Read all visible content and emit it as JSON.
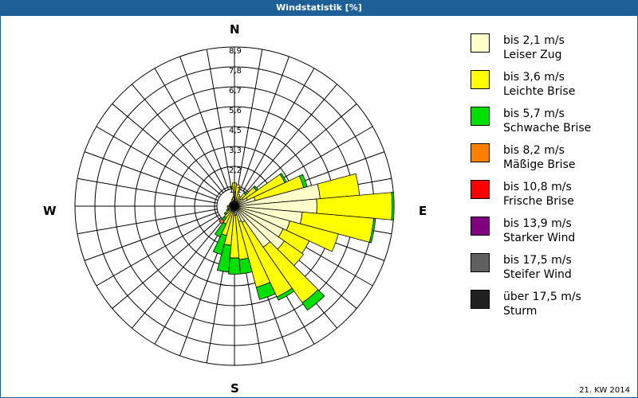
{
  "title": "Windstatistik [%]",
  "footer": "21. KW 2014",
  "compass": {
    "n": "N",
    "e": "E",
    "s": "S",
    "w": "W"
  },
  "legend": [
    {
      "speed": "bis 2,1 m/s",
      "name": "Leiser Zug",
      "color": "#ffffcc"
    },
    {
      "speed": "bis 3,6 m/s",
      "name": "Leichte Brise",
      "color": "#ffff00"
    },
    {
      "speed": "bis 5,7 m/s",
      "name": "Schwache Brise",
      "color": "#00e000"
    },
    {
      "speed": "bis 8,2 m/s",
      "name": "Mäßige Brise",
      "color": "#ff8000"
    },
    {
      "speed": "bis 10,8 m/s",
      "name": "Frische Brise",
      "color": "#ff0000"
    },
    {
      "speed": "bis 13,9 m/s",
      "name": "Starker Wind",
      "color": "#800080"
    },
    {
      "speed": "bis 17,5 m/s",
      "name": "Steifer Wind",
      "color": "#606060"
    },
    {
      "speed": "über 17,5 m/s",
      "name": "Sturm",
      "color": "#202020"
    }
  ],
  "chart_data": {
    "type": "polar-bar (wind rose)",
    "title": "Windstatistik [%]",
    "subtitle": "21. KW 2014",
    "radial_ticks": [
      "1,1",
      "2,2",
      "3,3",
      "4,5",
      "5,6",
      "6,7",
      "7,8",
      "8,9"
    ],
    "radial_max": 8.9,
    "directions_deg": [
      0,
      10,
      20,
      30,
      40,
      50,
      60,
      70,
      80,
      90,
      100,
      110,
      120,
      130,
      140,
      150,
      160,
      170,
      180,
      190,
      200,
      210,
      220,
      230,
      240,
      250,
      260,
      270,
      280,
      290,
      300,
      310,
      320,
      330,
      340,
      350
    ],
    "series": [
      {
        "name": "bis 2,1 m/s (Leiser Zug)",
        "values": [
          0.3,
          0.4,
          0.3,
          0.3,
          0.5,
          0.6,
          0.8,
          1.2,
          4.8,
          4.6,
          3.8,
          3.2,
          3.0,
          3.4,
          2.8,
          1.0,
          0.9,
          0.5,
          0.5,
          0.4,
          0.3,
          0.3,
          0.2,
          0.2,
          0.2,
          0.2,
          0.2,
          0.2,
          0.2,
          0.2,
          0.2,
          0.2,
          0.2,
          0.2,
          0.2,
          0.3
        ]
      },
      {
        "name": "bis 3,6 m/s (Leichte Brise)",
        "values": [
          1.0,
          0.8,
          0.4,
          0.3,
          0.4,
          0.9,
          2.3,
          2.8,
          2.2,
          4.2,
          4.0,
          2.8,
          1.6,
          1.3,
          3.8,
          4.6,
          3.8,
          2.5,
          2.4,
          1.8,
          1.4,
          0.8,
          0.6,
          0.4,
          0.2,
          0.2,
          0.2,
          0.2,
          0.1,
          0.1,
          0.1,
          0.1,
          0.1,
          0.1,
          0.2,
          0.2
        ]
      },
      {
        "name": "bis 5,7 m/s (Schwache Brise)",
        "values": [
          0,
          0,
          0,
          0,
          0.1,
          0.1,
          0.1,
          0.2,
          0,
          0.1,
          0.1,
          0,
          0,
          0,
          0.5,
          0.2,
          0.7,
          0.8,
          0.9,
          1.5,
          1.1,
          0.8,
          0.2,
          0.1,
          0.1,
          0,
          0,
          0,
          0,
          0,
          0,
          0,
          0,
          0,
          0,
          0
        ]
      },
      {
        "name": "bis 8,2 m/s (Mäßige Brise)",
        "values": [
          0,
          0,
          0,
          0,
          0,
          0,
          0,
          0,
          0,
          0,
          0,
          0,
          0,
          0,
          0,
          0,
          0,
          0,
          0,
          0,
          0,
          0,
          0.2,
          0,
          0,
          0,
          0,
          0,
          0,
          0,
          0,
          0,
          0,
          0,
          0,
          0
        ]
      },
      {
        "name": "bis 10,8 m/s (Frische Brise)",
        "values": [
          0,
          0,
          0,
          0,
          0,
          0,
          0,
          0,
          0,
          0,
          0,
          0,
          0,
          0,
          0,
          0,
          0,
          0,
          0,
          0,
          0,
          0,
          0,
          0,
          0,
          0,
          0,
          0,
          0,
          0,
          0,
          0,
          0,
          0,
          0,
          0
        ]
      },
      {
        "name": "bis 13,9 m/s (Starker Wind)",
        "values": [
          0,
          0,
          0,
          0,
          0,
          0,
          0,
          0,
          0,
          0,
          0,
          0,
          0,
          0,
          0,
          0,
          0,
          0,
          0,
          0,
          0,
          0,
          0,
          0,
          0,
          0,
          0,
          0,
          0,
          0,
          0,
          0,
          0,
          0,
          0,
          0
        ]
      },
      {
        "name": "bis 17,5 m/s (Steifer Wind)",
        "values": [
          0,
          0,
          0,
          0,
          0,
          0,
          0,
          0,
          0,
          0,
          0,
          0,
          0,
          0,
          0,
          0,
          0,
          0,
          0,
          0,
          0,
          0,
          0,
          0,
          0,
          0,
          0,
          0,
          0,
          0,
          0,
          0,
          0,
          0,
          0,
          0
        ]
      },
      {
        "name": "über 17,5 m/s (Sturm)",
        "values": [
          0,
          0,
          0,
          0,
          0,
          0,
          0,
          0,
          0,
          0,
          0,
          0,
          0,
          0,
          0,
          0,
          0,
          0,
          0,
          0,
          0,
          0,
          0,
          0,
          0,
          0,
          0,
          0,
          0,
          0,
          0,
          0,
          0,
          0,
          0,
          0
        ]
      }
    ],
    "legend_position": "right",
    "grid": true
  }
}
